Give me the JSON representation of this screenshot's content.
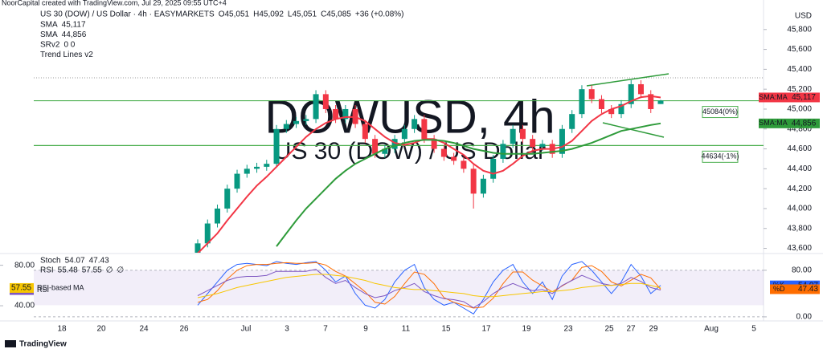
{
  "chart_data": {
    "type": "candlestick",
    "header_note": "NoorCapital created with TradingView.com, Jul 29, 2025 09:55 UTC+4",
    "title": "US 30 (DOW) / US Dollar · 4h · EASYMARKETS",
    "ohlc_legend": [
      "O45,051",
      "H45,092",
      "L45,051",
      "C45,085",
      "+36 (+0.08%)"
    ],
    "indicators": [
      {
        "name": "SMA",
        "value": "45,117",
        "color": "#f23645"
      },
      {
        "name": "SMA",
        "value": "44,856",
        "color": "#2e9b3a"
      },
      {
        "name": "SRv2",
        "value": "0 0",
        "color": "#2962ff"
      },
      {
        "name": "Trend Lines v2",
        "value": null,
        "color": null
      }
    ],
    "watermark": "DOWUSD, 4h",
    "watermark_sub": "US 30 (DOW) / US Dollar",
    "currency": "USD",
    "up_color": "#089981",
    "down_color": "#f23645",
    "candles": {
      "open": [
        43500,
        43650,
        43850,
        44000,
        44200,
        44350,
        44400,
        44420,
        44450,
        44800,
        44850,
        44880,
        44900,
        45150,
        45000,
        44900,
        45000,
        44850,
        44700,
        44550,
        44600,
        44700,
        44800,
        44900,
        44700,
        44600,
        44520,
        44480,
        44400,
        44150,
        44300,
        44500,
        44650,
        44800,
        44700,
        44620,
        44650,
        44550,
        44800,
        44950,
        45200,
        45100,
        45000,
        44950,
        45050,
        45250,
        45150,
        45051
      ],
      "high": [
        43690,
        43890,
        44040,
        44240,
        44390,
        44440,
        44460,
        44490,
        44840,
        44890,
        44920,
        44940,
        45190,
        45190,
        45040,
        45040,
        45040,
        44890,
        44740,
        44640,
        44740,
        44840,
        44940,
        44940,
        44740,
        44640,
        44560,
        44520,
        44440,
        44340,
        44540,
        44690,
        44840,
        44840,
        44740,
        44690,
        44690,
        44840,
        44990,
        45240,
        45240,
        45140,
        45040,
        45090,
        45290,
        45290,
        45190,
        45092
      ],
      "low": [
        43460,
        43610,
        43810,
        43960,
        44160,
        44310,
        44360,
        44380,
        44410,
        44760,
        44810,
        44840,
        44860,
        44960,
        44860,
        44860,
        44810,
        44660,
        44510,
        44510,
        44560,
        44660,
        44760,
        44660,
        44560,
        44480,
        44440,
        44360,
        44000,
        44110,
        44260,
        44460,
        44610,
        44660,
        44580,
        44580,
        44510,
        44510,
        44760,
        44910,
        45060,
        44960,
        44910,
        44910,
        45010,
        45110,
        44960,
        45051
      ],
      "close": [
        43650,
        43850,
        44000,
        44200,
        44350,
        44400,
        44420,
        44450,
        44800,
        44850,
        44880,
        44900,
        45150,
        45000,
        44900,
        45000,
        44850,
        44700,
        44550,
        44600,
        44700,
        44800,
        44900,
        44700,
        44600,
        44520,
        44480,
        44400,
        44150,
        44300,
        44500,
        44650,
        44800,
        44700,
        44620,
        44650,
        44550,
        44800,
        44950,
        45200,
        45100,
        45000,
        44950,
        45050,
        45250,
        45150,
        45000,
        45085
      ]
    },
    "series": [
      {
        "name": "SMA",
        "color": "#f23645",
        "values": [
          43550,
          43650,
          43750,
          43880,
          44000,
          44120,
          44230,
          44320,
          44420,
          44520,
          44620,
          44720,
          44800,
          44860,
          44900,
          44920,
          44920,
          44880,
          44800,
          44720,
          44660,
          44640,
          44660,
          44700,
          44700,
          44660,
          44600,
          44540,
          44450,
          44380,
          44350,
          44380,
          44450,
          44530,
          44580,
          44600,
          44600,
          44620,
          44680,
          44780,
          44880,
          44950,
          45000,
          45030,
          45080,
          45120,
          45130,
          45117
        ]
      },
      {
        "name": "SMA",
        "color": "#2e9b3a",
        "values": [
          null,
          null,
          null,
          null,
          null,
          null,
          null,
          null,
          43620,
          43750,
          43880,
          44000,
          44100,
          44200,
          44300,
          44380,
          44450,
          44500,
          44550,
          44600,
          44630,
          44660,
          44680,
          44690,
          44690,
          44680,
          44660,
          44630,
          44600,
          44580,
          44560,
          44550,
          44550,
          44550,
          44550,
          44560,
          44570,
          44580,
          44600,
          44630,
          44660,
          44700,
          44740,
          44780,
          44800,
          44820,
          44840,
          44856
        ]
      }
    ],
    "price_tags": [
      {
        "label": "SMA:MA",
        "value": 45117,
        "text": "45,117",
        "color": "#f23645"
      },
      {
        "label": "SMA:MA",
        "value": 44856,
        "text": "44,856",
        "color": "#2e9b3a"
      }
    ],
    "levels": [
      {
        "value": 45084,
        "label": "45084(0%)"
      },
      {
        "value": 44634,
        "label": "44634(-1%)"
      }
    ],
    "level_color": "#4caf50",
    "ylim": [
      43556,
      46016
    ],
    "yticks": [
      {
        "value": 43600,
        "label": "43,600"
      },
      {
        "value": 43800,
        "label": "43,800"
      },
      {
        "value": 44000,
        "label": "44,000"
      },
      {
        "value": 44200,
        "label": "44,200"
      },
      {
        "value": 44400,
        "label": "44,400"
      },
      {
        "value": 44600,
        "label": "44,600"
      },
      {
        "value": 44800,
        "label": "44,800"
      },
      {
        "value": 45000,
        "label": "45,000"
      },
      {
        "value": 45200,
        "label": "45,200"
      },
      {
        "value": 45400,
        "label": "45,400"
      },
      {
        "value": 45600,
        "label": "45,600"
      },
      {
        "value": 45800,
        "label": "45,800"
      }
    ],
    "x_labels": [
      "18",
      "20",
      "24",
      "26",
      "Jul",
      "3",
      "7",
      "9",
      "11",
      "15",
      "17",
      "19",
      "23",
      "25",
      "27",
      "29",
      "Aug",
      "5"
    ],
    "oscillator": {
      "stoch_legend": [
        "Stoch",
        "54.07",
        "47.43"
      ],
      "rsi_legend": [
        "RSI",
        "55.48",
        "57.55",
        "∅",
        "∅"
      ],
      "ylim": [
        -7,
        106
      ],
      "yticks": [
        {
          "value": 80,
          "label": "80.00"
        },
        {
          "value": 0,
          "label": "0.00"
        }
      ],
      "y2lim": [
        25,
        90
      ],
      "y2ticks": [
        {
          "value": 80,
          "label": "80.00"
        },
        {
          "value": 40,
          "label": "40.00"
        }
      ],
      "band": [
        20,
        80
      ],
      "series": [
        {
          "name": "%K",
          "color": "#2962ff",
          "last": "54.07",
          "values": [
            20,
            40,
            60,
            80,
            90,
            92,
            90,
            88,
            95,
            92,
            90,
            93,
            95,
            80,
            60,
            70,
            40,
            20,
            15,
            30,
            60,
            80,
            90,
            50,
            30,
            20,
            25,
            15,
            5,
            30,
            60,
            80,
            90,
            60,
            40,
            60,
            30,
            70,
            90,
            95,
            80,
            60,
            40,
            60,
            90,
            70,
            40,
            54.07
          ]
        },
        {
          "name": "%D",
          "color": "#ff6d00",
          "last": "47.43",
          "values": [
            25,
            30,
            45,
            65,
            80,
            88,
            90,
            90,
            92,
            93,
            92,
            92,
            93,
            89,
            78,
            70,
            57,
            43,
            25,
            22,
            35,
            57,
            77,
            73,
            57,
            33,
            25,
            20,
            15,
            17,
            32,
            57,
            77,
            77,
            63,
            53,
            43,
            53,
            63,
            85,
            88,
            78,
            60,
            53,
            63,
            73,
            67,
            47.43
          ]
        },
        {
          "name": "RSI",
          "color": "#7e57c2",
          "last": "55.48",
          "axis": "y2",
          "values": [
            50,
            55,
            60,
            65,
            68,
            69,
            69,
            70,
            74,
            74,
            74,
            74,
            76,
            68,
            62,
            65,
            58,
            52,
            48,
            50,
            55,
            58,
            62,
            54,
            50,
            47,
            46,
            44,
            38,
            44,
            52,
            58,
            62,
            58,
            55,
            56,
            52,
            60,
            65,
            70,
            66,
            62,
            60,
            62,
            68,
            64,
            58,
            55.48
          ]
        },
        {
          "name": "RSI-based MA",
          "color": "#f7c600",
          "last": "57.55",
          "axis": "y2",
          "values": [
            48,
            50,
            52,
            55,
            58,
            60,
            62,
            64,
            66,
            68,
            69,
            70,
            71,
            71,
            70,
            69,
            67,
            65,
            62,
            60,
            58,
            57,
            56,
            56,
            55,
            54,
            53,
            52,
            50,
            49,
            49,
            50,
            51,
            52,
            53,
            54,
            54,
            55,
            56,
            58,
            59,
            60,
            60,
            61,
            62,
            62,
            60,
            57.55
          ]
        }
      ]
    },
    "footer": "TradingView"
  }
}
